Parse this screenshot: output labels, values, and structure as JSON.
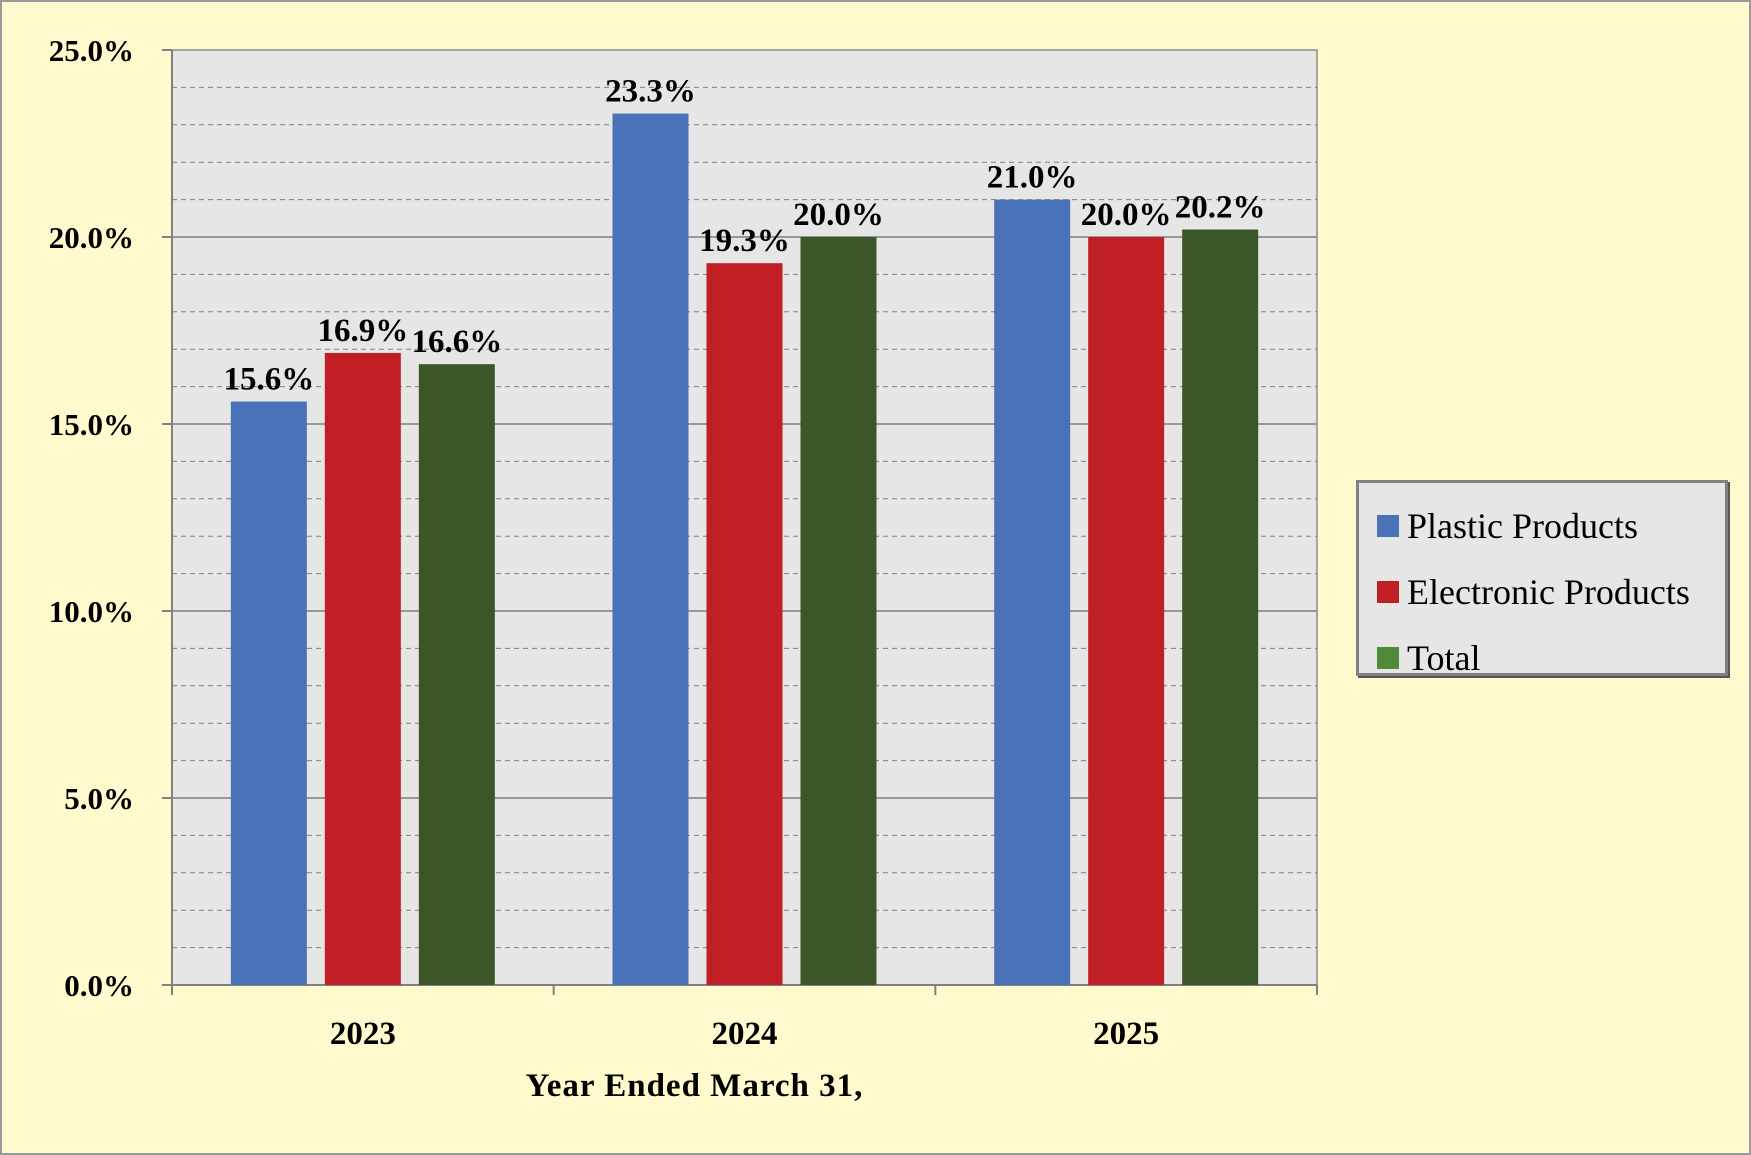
{
  "chart_data": {
    "type": "bar",
    "categories": [
      "2023",
      "2024",
      "2025"
    ],
    "series": [
      {
        "name": "Plastic Products",
        "values": [
          15.6,
          23.3,
          21.0
        ],
        "color": "#4a72b8",
        "labels": [
          "15.6%",
          "23.3%",
          "21.0%"
        ]
      },
      {
        "name": "Electronic Products",
        "values": [
          16.9,
          19.3,
          20.0
        ],
        "color": "#c01f26",
        "labels": [
          "16.9%",
          "19.3%",
          "20.0%"
        ]
      },
      {
        "name": "Total",
        "values": [
          16.6,
          20.0,
          20.2
        ],
        "color": "#3b5728",
        "labels": [
          "16.6%",
          "20.0%",
          "20.2%"
        ]
      }
    ],
    "xlabel": "Year Ended March 31,",
    "ylabel": "",
    "ylim": [
      0,
      25
    ],
    "yticks": [
      "0.0%",
      "5.0%",
      "10.0%",
      "15.0%",
      "20.0%",
      "25.0%"
    ],
    "grid": {
      "major": true,
      "minor_dashed": true
    },
    "legend_position": "right",
    "colors": {
      "frame_background": "#fffacd",
      "plot_background": "#e6e6e6",
      "legend_total_swatch": "#508b3a"
    }
  }
}
